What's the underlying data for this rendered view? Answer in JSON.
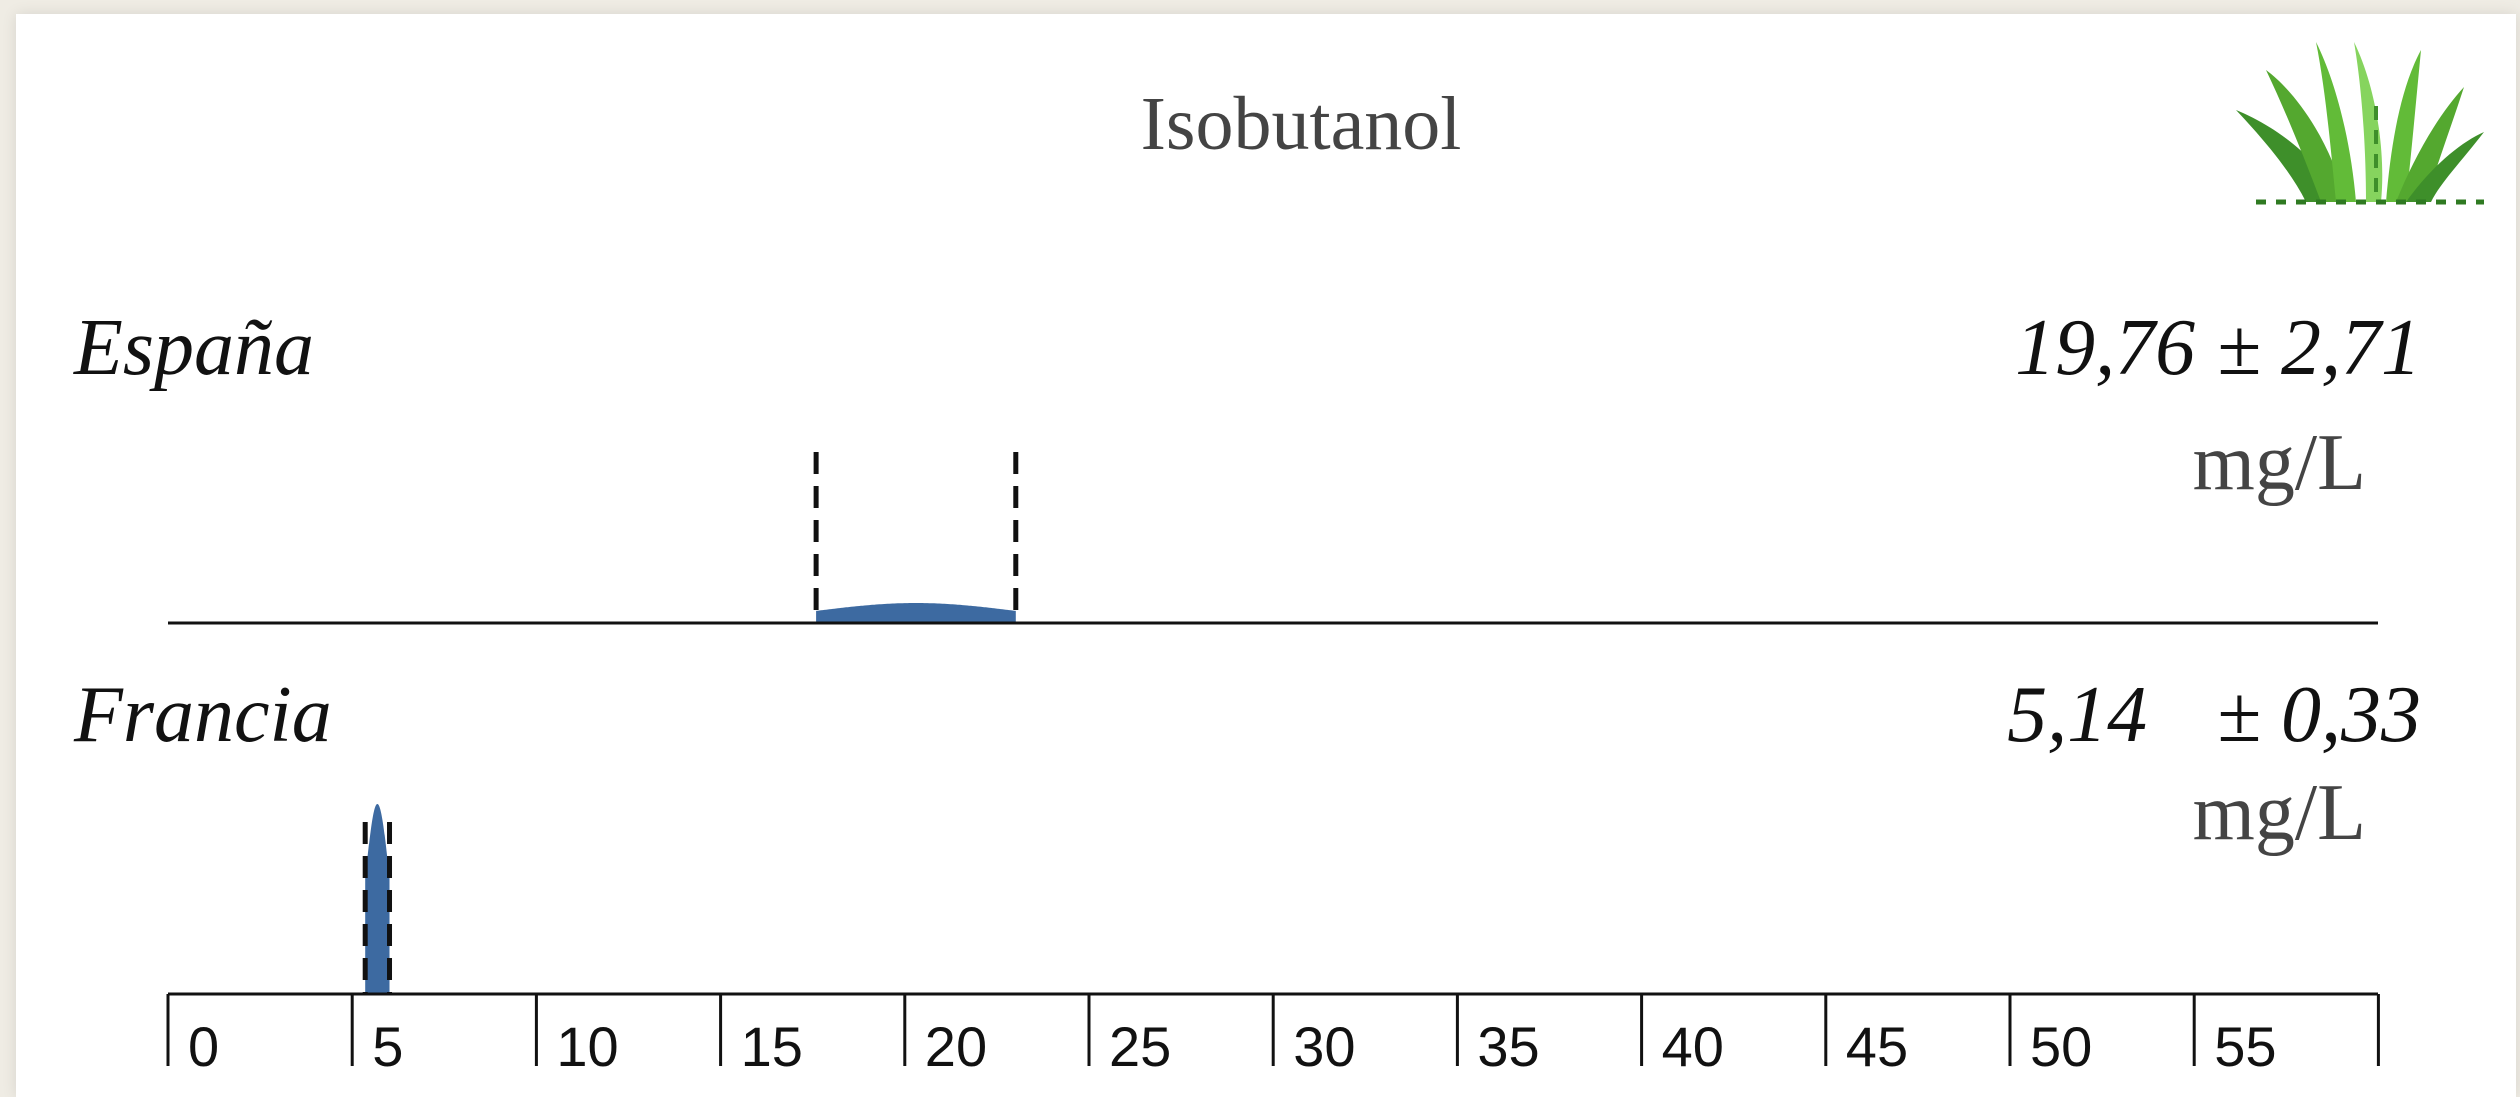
{
  "chart_data": {
    "type": "area",
    "title": "Isobutanol",
    "x_ticks": [
      "0",
      "5",
      "10",
      "15",
      "20",
      "25",
      "30",
      "35",
      "40",
      "45",
      "50",
      "55"
    ],
    "xlim": [
      -1,
      59
    ],
    "colors": {
      "density": "#3d6aa1",
      "lines": "#111111"
    },
    "series": [
      {
        "name": "España",
        "mean": 19.76,
        "sd": 2.71,
        "mean_label": "19,76",
        "sd_label": "± 2,71",
        "unit": "mg/L",
        "interval": [
          17.05,
          22.47
        ],
        "peak_density": 0.147
      },
      {
        "name": "Francia",
        "mean": 5.14,
        "sd": 0.33,
        "mean_label": "5,14",
        "sd_label": "± 0,33",
        "unit": "mg/L",
        "interval": [
          4.81,
          5.47
        ],
        "peak_density": 1.21
      }
    ],
    "grid": false,
    "logo": "grass-icon"
  }
}
